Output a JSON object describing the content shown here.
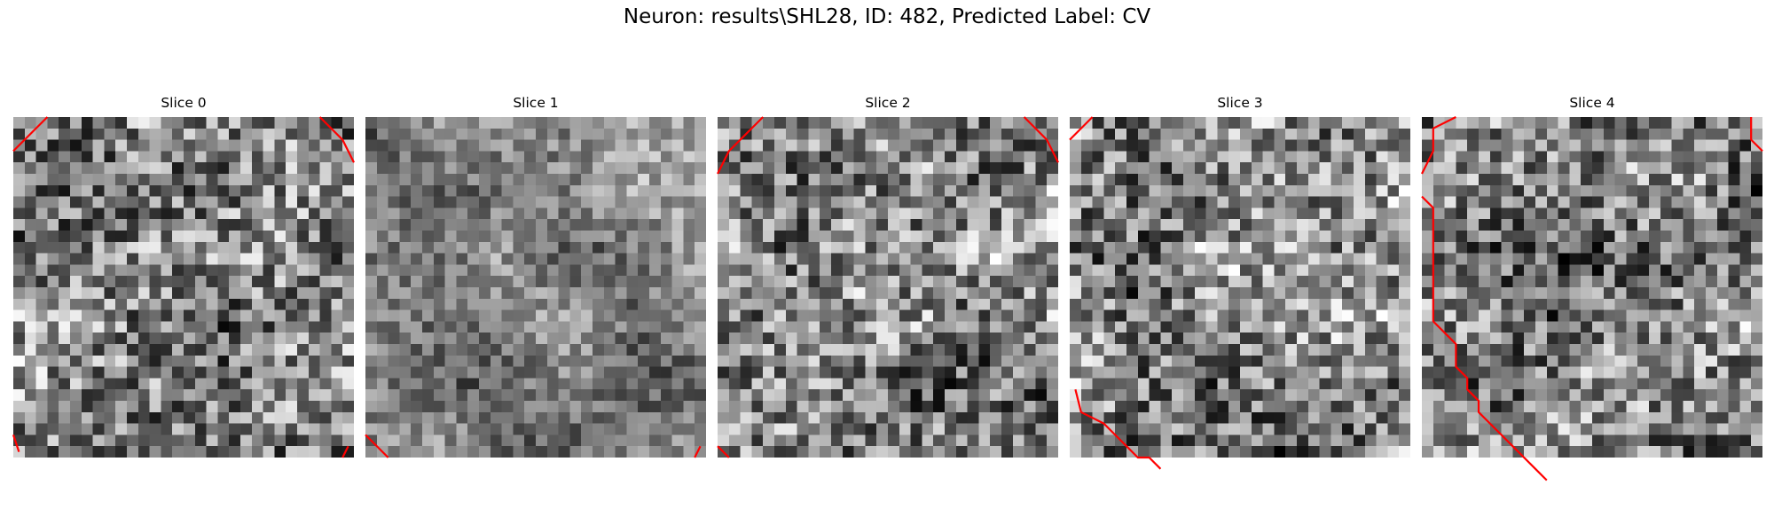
{
  "figure": {
    "suptitle": "Neuron: results\\SHL28, ID: 482, Predicted Label: CV",
    "colormap": "gray",
    "contour_color": "#ff0000",
    "background": "#ffffff"
  },
  "slices": [
    {
      "title": "Slice 0",
      "contours": [
        [
          [
            0,
            3
          ],
          [
            3,
            0
          ]
        ],
        [
          [
            27,
            0
          ],
          [
            29,
            2
          ],
          [
            30,
            4
          ]
        ],
        [
          [
            0,
            28
          ],
          [
            0.5,
            29.5
          ]
        ],
        [
          [
            29.5,
            29
          ],
          [
            29,
            30
          ]
        ]
      ]
    },
    {
      "title": "Slice 1",
      "contours": [
        [
          [
            0,
            28
          ],
          [
            2,
            30
          ]
        ],
        [
          [
            29.5,
            29
          ],
          [
            29,
            30
          ]
        ]
      ]
    },
    {
      "title": "Slice 2",
      "contours": [
        [
          [
            4,
            0
          ],
          [
            1,
            3
          ],
          [
            0,
            5
          ]
        ],
        [
          [
            27,
            0
          ],
          [
            29,
            2
          ],
          [
            30,
            4
          ]
        ],
        [
          [
            0,
            29
          ],
          [
            1,
            30
          ]
        ]
      ]
    },
    {
      "title": "Slice 3",
      "contours": [
        [
          [
            2,
            0
          ],
          [
            0,
            2
          ]
        ],
        [
          [
            0.5,
            24
          ],
          [
            1,
            26
          ],
          [
            3,
            27
          ],
          [
            4,
            28
          ],
          [
            5,
            29
          ],
          [
            6,
            30
          ],
          [
            7,
            30
          ],
          [
            8,
            31
          ]
        ]
      ]
    },
    {
      "title": "Slice 4",
      "contours": [
        [
          [
            0,
            5
          ],
          [
            1,
            3
          ],
          [
            1,
            1
          ],
          [
            3,
            0
          ]
        ],
        [
          [
            29,
            0
          ],
          [
            29,
            2
          ],
          [
            30,
            3
          ]
        ],
        [
          [
            0,
            7
          ],
          [
            1,
            8
          ],
          [
            1,
            10
          ],
          [
            1,
            18
          ],
          [
            1,
            18
          ],
          [
            2,
            19
          ],
          [
            3,
            20
          ],
          [
            3,
            22
          ],
          [
            4,
            23
          ],
          [
            4,
            24
          ],
          [
            5,
            25
          ],
          [
            5,
            26
          ],
          [
            6,
            27
          ],
          [
            7,
            28
          ],
          [
            8,
            29
          ],
          [
            9,
            30
          ],
          [
            10,
            31
          ],
          [
            11,
            32
          ]
        ]
      ]
    }
  ]
}
